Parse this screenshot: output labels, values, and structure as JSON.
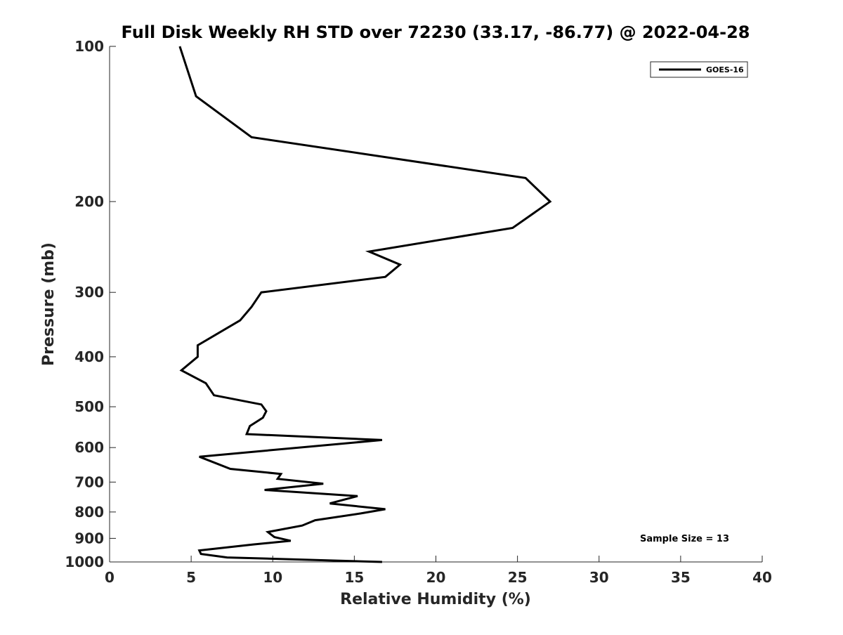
{
  "chart_data": {
    "type": "line",
    "title": "Full Disk Weekly RH STD over 72230 (33.17, -86.77) @ 2022-04-28",
    "xlabel": "Relative Humidity (%)",
    "ylabel": "Pressure (mb)",
    "xlim": [
      0,
      40
    ],
    "ylim": [
      100,
      1000
    ],
    "y_scale": "log",
    "y_reversed": true,
    "grid": false,
    "x_ticks": [
      0,
      5,
      10,
      15,
      20,
      25,
      30,
      35,
      40
    ],
    "y_ticks": [
      100,
      200,
      300,
      400,
      500,
      600,
      700,
      800,
      900,
      1000
    ],
    "x_tick_labels": [
      "0",
      "5",
      "10",
      "15",
      "20",
      "25",
      "30",
      "35",
      "40"
    ],
    "y_tick_labels": [
      "100",
      "200",
      "300",
      "400",
      "500",
      "600",
      "700",
      "800",
      "900",
      "1000"
    ],
    "legend_position": "top-right",
    "series": [
      {
        "name": "GOES-16",
        "color": "#000000",
        "points": [
          [
            4.3,
            100
          ],
          [
            5.3,
            125
          ],
          [
            8.7,
            150
          ],
          [
            25.5,
            180
          ],
          [
            27.0,
            200
          ],
          [
            24.7,
            225
          ],
          [
            15.9,
            250
          ],
          [
            17.8,
            265
          ],
          [
            16.9,
            280
          ],
          [
            9.3,
            300
          ],
          [
            8.7,
            320
          ],
          [
            8.0,
            340
          ],
          [
            5.4,
            380
          ],
          [
            5.4,
            400
          ],
          [
            4.4,
            425
          ],
          [
            5.9,
            450
          ],
          [
            6.4,
            475
          ],
          [
            9.3,
            495
          ],
          [
            9.6,
            510
          ],
          [
            9.4,
            525
          ],
          [
            8.6,
            545
          ],
          [
            8.4,
            565
          ],
          [
            16.7,
            580
          ],
          [
            5.5,
            625
          ],
          [
            7.4,
            660
          ],
          [
            10.5,
            675
          ],
          [
            10.3,
            690
          ],
          [
            13.1,
            705
          ],
          [
            9.5,
            725
          ],
          [
            15.2,
            745
          ],
          [
            13.5,
            770
          ],
          [
            16.9,
            790
          ],
          [
            15.4,
            805
          ],
          [
            12.6,
            830
          ],
          [
            11.8,
            850
          ],
          [
            9.7,
            875
          ],
          [
            10.1,
            895
          ],
          [
            11.1,
            910
          ],
          [
            8.8,
            925
          ],
          [
            5.5,
            950
          ],
          [
            5.6,
            965
          ],
          [
            7.2,
            980
          ],
          [
            16.7,
            1000
          ]
        ]
      }
    ],
    "annotations": [
      "Sample Size = 13"
    ]
  }
}
